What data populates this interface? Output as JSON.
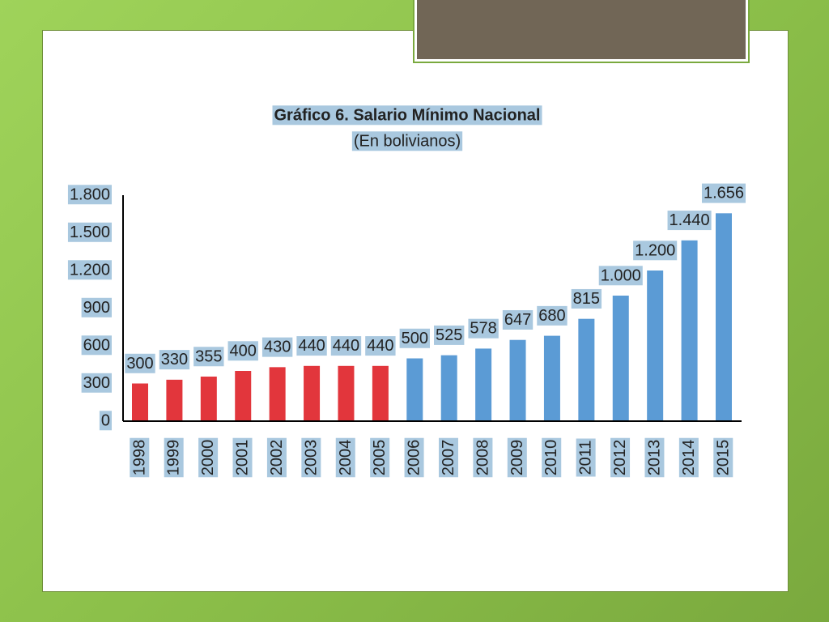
{
  "chart_data": {
    "type": "bar",
    "title": "Gráfico 6. Salario Mínimo Nacional",
    "subtitle": "(En bolivianos)",
    "categories": [
      "1998",
      "1999",
      "2000",
      "2001",
      "2002",
      "2003",
      "2004",
      "2005",
      "2006",
      "2007",
      "2008",
      "2009",
      "2010",
      "2011",
      "2012",
      "2013",
      "2014",
      "2015"
    ],
    "values": [
      300,
      330,
      355,
      400,
      430,
      440,
      440,
      440,
      500,
      525,
      578,
      647,
      680,
      815,
      1000,
      1200,
      1440,
      1656
    ],
    "value_labels": [
      "300",
      "330",
      "355",
      "400",
      "430",
      "440",
      "440",
      "440",
      "500",
      "525",
      "578",
      "647",
      "680",
      "815",
      "1.000",
      "1.200",
      "1.440",
      "1.656"
    ],
    "colors": [
      "#e2363c",
      "#e2363c",
      "#e2363c",
      "#e2363c",
      "#e2363c",
      "#e2363c",
      "#e2363c",
      "#e2363c",
      "#5b9bd5",
      "#5b9bd5",
      "#5b9bd5",
      "#5b9bd5",
      "#5b9bd5",
      "#5b9bd5",
      "#5b9bd5",
      "#5b9bd5",
      "#5b9bd5",
      "#5b9bd5"
    ],
    "ylim": [
      0,
      1800
    ],
    "yticks": [
      0,
      300,
      600,
      900,
      {
        "value": 1200,
        "label": "1.200"
      },
      {
        "value": 1500,
        "label": "1.500"
      },
      {
        "value": 1800,
        "label": "1.800"
      }
    ],
    "grid": false
  }
}
